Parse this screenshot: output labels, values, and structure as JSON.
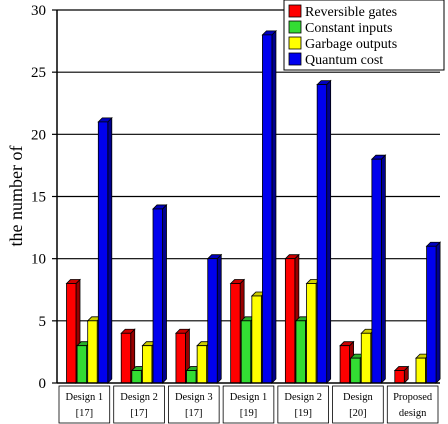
{
  "chart_data": {
    "type": "bar",
    "ylabel": "the number of",
    "xlabel": "",
    "title": "",
    "ylim": [
      0,
      30
    ],
    "yticks": [
      "0",
      "5",
      "10",
      "15",
      "20",
      "25",
      "30"
    ],
    "grid": "horizontal",
    "legend_position": "top-right",
    "categories": [
      {
        "line1": "Design 1",
        "line2": "[17]"
      },
      {
        "line1": "Design 2",
        "line2": "[17]"
      },
      {
        "line1": "Design 3",
        "line2": "[17]"
      },
      {
        "line1": "Design 1",
        "line2": "[19]"
      },
      {
        "line1": "Design 2",
        "line2": "[19]"
      },
      {
        "line1": "Design",
        "line2": "[20]"
      },
      {
        "line1": "Proposed",
        "line2": "design"
      }
    ],
    "series": [
      {
        "name": "Reversible gates",
        "color": "#ff0000",
        "values": [
          8,
          4,
          4,
          8,
          10,
          3,
          1
        ]
      },
      {
        "name": "Constant inputs",
        "color": "#33dd33",
        "values": [
          3,
          1,
          1,
          5,
          5,
          2,
          0
        ]
      },
      {
        "name": "Garbage outputs",
        "color": "#ffff00",
        "values": [
          5,
          3,
          3,
          7,
          8,
          4,
          2
        ]
      },
      {
        "name": "Quantum cost",
        "color": "#0000ee",
        "values": [
          21,
          14,
          10,
          28,
          24,
          18,
          11
        ]
      }
    ]
  }
}
